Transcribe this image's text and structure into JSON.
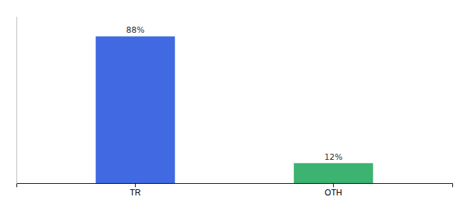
{
  "chart_data": {
    "type": "bar",
    "categories": [
      "TR",
      "OTH"
    ],
    "values": [
      88,
      12
    ],
    "value_labels": [
      "88%",
      "12%"
    ],
    "colors": [
      "#4169E1",
      "#3CB371"
    ],
    "ylim": [
      0,
      100
    ],
    "data_labels": true,
    "tick_labels": "x",
    "grid": false
  }
}
